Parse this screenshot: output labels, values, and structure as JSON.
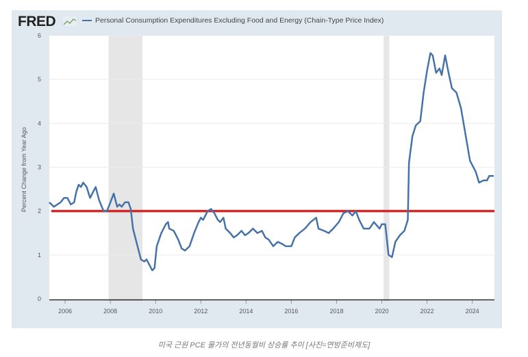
{
  "header": {
    "logo": "FRED",
    "legend_label": "Personal Consumption Expenditures Excluding Food and Energy (Chain-Type Price Index)"
  },
  "caption": "미국 근원 PCE 물가의 전년동월비 상승률 추이 [사진=연방준비제도]",
  "chart_data": {
    "type": "line",
    "title": "Personal Consumption Expenditures Excluding Food and Energy (Chain-Type Price Index)",
    "xlabel": "",
    "ylabel": "Percent Change from Year Ago",
    "xlim": [
      2005.3,
      2024.98
    ],
    "ylim": [
      0,
      6
    ],
    "yticks": [
      "0",
      "1",
      "2",
      "3",
      "4",
      "5",
      "6"
    ],
    "xticks": [
      "2006",
      "2008",
      "2010",
      "2012",
      "2014",
      "2016",
      "2018",
      "2020",
      "2022",
      "2024"
    ],
    "grid": true,
    "colors": {
      "series": "#4572a7",
      "reference": "#d62728",
      "recession": "#e6e6e6"
    },
    "recessions": [
      [
        2007.92,
        2009.42
      ],
      [
        2020.08,
        2020.33
      ]
    ],
    "reference_line": {
      "y": 2
    },
    "series": [
      {
        "name": "Personal Consumption Expenditures Excluding Food and Energy (Chain-Type Price Index)",
        "x": [
          2005.3,
          2005.5,
          2005.8,
          2005.95,
          2006.1,
          2006.25,
          2006.4,
          2006.5,
          2006.6,
          2006.7,
          2006.8,
          2006.95,
          2007.1,
          2007.25,
          2007.35,
          2007.5,
          2007.7,
          2007.85,
          2008.0,
          2008.15,
          2008.3,
          2008.4,
          2008.5,
          2008.65,
          2008.8,
          2008.9,
          2009.0,
          2009.2,
          2009.35,
          2009.5,
          2009.6,
          2009.75,
          2009.85,
          2009.95,
          2010.05,
          2010.25,
          2010.45,
          2010.55,
          2010.6,
          2010.8,
          2011.0,
          2011.15,
          2011.3,
          2011.5,
          2011.7,
          2011.9,
          2012.0,
          2012.1,
          2012.3,
          2012.45,
          2012.6,
          2012.75,
          2012.85,
          2013.0,
          2013.1,
          2013.3,
          2013.45,
          2013.6,
          2013.8,
          2013.95,
          2014.1,
          2014.3,
          2014.5,
          2014.7,
          2014.85,
          2015.0,
          2015.2,
          2015.4,
          2015.6,
          2015.75,
          2016.0,
          2016.15,
          2016.35,
          2016.6,
          2016.85,
          2017.1,
          2017.2,
          2017.45,
          2017.65,
          2017.85,
          2018.1,
          2018.3,
          2018.5,
          2018.7,
          2018.85,
          2019.0,
          2019.2,
          2019.45,
          2019.65,
          2019.9,
          2020.0,
          2020.15,
          2020.3,
          2020.45,
          2020.6,
          2020.8,
          2021.0,
          2021.15,
          2021.2,
          2021.35,
          2021.5,
          2021.7,
          2021.85,
          2022.0,
          2022.15,
          2022.25,
          2022.4,
          2022.55,
          2022.65,
          2022.8,
          2022.95,
          2023.1,
          2023.3,
          2023.5,
          2023.7,
          2023.9,
          2024.0,
          2024.15,
          2024.3,
          2024.5,
          2024.65,
          2024.75,
          2024.95
        ],
        "y": [
          2.2,
          2.1,
          2.2,
          2.3,
          2.3,
          2.15,
          2.2,
          2.45,
          2.6,
          2.55,
          2.65,
          2.55,
          2.3,
          2.45,
          2.55,
          2.25,
          2.0,
          2.0,
          2.2,
          2.4,
          2.1,
          2.15,
          2.1,
          2.2,
          2.2,
          2.05,
          1.6,
          1.2,
          0.9,
          0.85,
          0.9,
          0.75,
          0.65,
          0.7,
          1.2,
          1.5,
          1.7,
          1.75,
          1.6,
          1.55,
          1.35,
          1.15,
          1.1,
          1.2,
          1.5,
          1.75,
          1.85,
          1.8,
          2.0,
          2.05,
          1.95,
          1.8,
          1.75,
          1.85,
          1.6,
          1.5,
          1.4,
          1.45,
          1.55,
          1.45,
          1.5,
          1.6,
          1.5,
          1.55,
          1.4,
          1.35,
          1.2,
          1.3,
          1.25,
          1.2,
          1.2,
          1.4,
          1.5,
          1.6,
          1.75,
          1.85,
          1.6,
          1.55,
          1.5,
          1.6,
          1.75,
          1.95,
          2.0,
          1.9,
          2.0,
          1.8,
          1.6,
          1.6,
          1.75,
          1.6,
          1.7,
          1.7,
          1.0,
          0.95,
          1.3,
          1.45,
          1.55,
          1.8,
          3.1,
          3.7,
          3.95,
          4.05,
          4.7,
          5.2,
          5.6,
          5.55,
          5.15,
          5.25,
          5.1,
          5.55,
          5.15,
          4.8,
          4.7,
          4.35,
          3.75,
          3.15,
          3.05,
          2.9,
          2.65,
          2.7,
          2.7,
          2.8,
          2.8
        ]
      }
    ]
  }
}
